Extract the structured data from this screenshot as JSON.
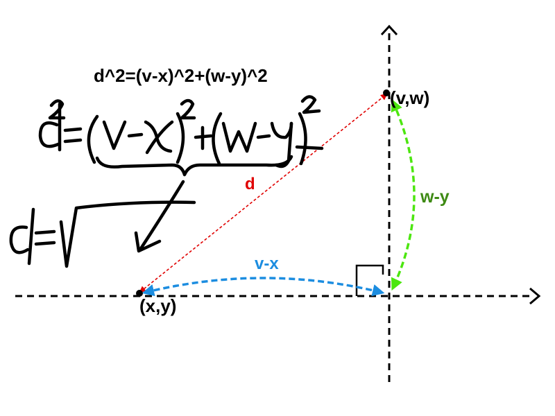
{
  "formula_text": "d^2=(v-x)^2+(w-y)^2",
  "handwritten_note": "d² = (v - x)² + (w - y)², d = √",
  "points": {
    "vw_label": "(v,w)",
    "xy_label": "(x,y)"
  },
  "distances": {
    "d_label": "d",
    "vertical_label": "w-y",
    "horizontal_label": "v-x"
  },
  "colors": {
    "d_line": "#e00000",
    "d_text": "#e00000",
    "vertical_arrow": "#4ce60f",
    "vertical_text": "#3e8a14",
    "horizontal_arrow": "#1c8de0",
    "horizontal_text": "#1c8de0",
    "axes": "#000000",
    "ink": "#000000"
  }
}
